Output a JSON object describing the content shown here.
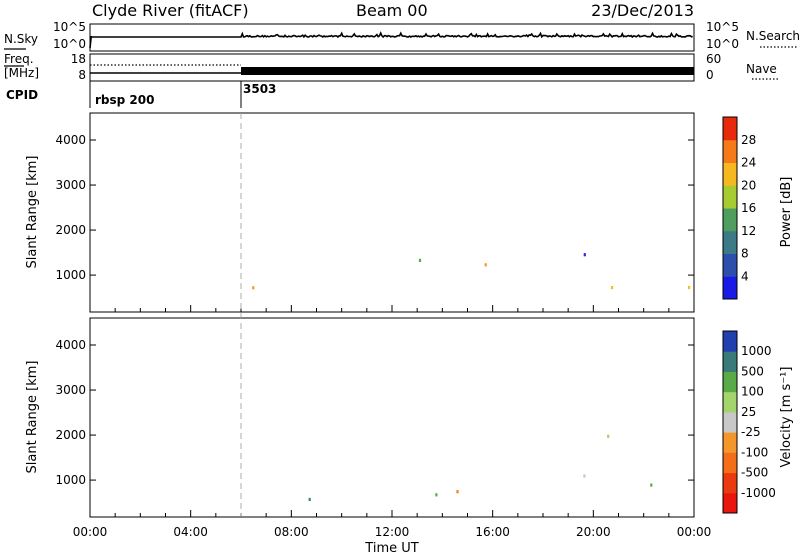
{
  "header": {
    "station": "Clyde River (fitACF)",
    "beam": "Beam 00",
    "date": "23/Dec/2013"
  },
  "colors": {
    "power_scale": [
      "#2a2adc",
      "#2b5fa8",
      "#3f8a7a",
      "#58a85a",
      "#9cc834",
      "#f2c21a",
      "#f59a20",
      "#f46a14",
      "#ec3c10",
      "#e01a0a"
    ],
    "velocity_scale": [
      "#e8160c",
      "#f04a12",
      "#f5801a",
      "#f5a83a",
      "#c8c8c8",
      "#9cd46c",
      "#58b040",
      "#3a8a6a",
      "#2a5aa0",
      "#1e34b8"
    ]
  },
  "chart_data": [
    {
      "type": "line",
      "name": "nsky-nsearch",
      "left_label": "N.Sky",
      "right_label": "N.Search",
      "left_ticks": [
        "10^5",
        "10^0"
      ],
      "right_ticks": [
        "10^5",
        "10^0"
      ]
    },
    {
      "type": "line",
      "name": "freq-nave",
      "left_label_lines": [
        "Freq.",
        "[MHz]"
      ],
      "right_label": "Nave",
      "left_ticks": [
        "18",
        "8"
      ],
      "right_ticks": [
        "60",
        "0"
      ]
    },
    {
      "type": "table",
      "name": "cpid",
      "label": "CPID",
      "entries": [
        {
          "t": 0.0,
          "text": "rbsp 200"
        },
        {
          "t": 6.0,
          "text": "3503"
        }
      ]
    },
    {
      "type": "heatmap",
      "name": "power",
      "ylabel": "Slant Range [km]",
      "yticks": [
        "1000",
        "2000",
        "3000",
        "4000"
      ],
      "ytick_values": [
        1000,
        2000,
        3000,
        4000
      ],
      "ylim": [
        180,
        4600
      ],
      "xlim": [
        0,
        24
      ],
      "colorbar_label": "Power [dB]",
      "colorbar_ticks": [
        "4",
        "8",
        "12",
        "16",
        "20",
        "24",
        "28"
      ],
      "colorbar_range": [
        0,
        32
      ]
    },
    {
      "type": "heatmap",
      "name": "velocity",
      "ylabel": "Slant Range [km]",
      "yticks": [
        "1000",
        "2000",
        "3000",
        "4000"
      ],
      "ytick_values": [
        1000,
        2000,
        3000,
        4000
      ],
      "ylim": [
        180,
        4600
      ],
      "xlim": [
        0,
        24
      ],
      "xlabel": "Time UT",
      "xticks": [
        "00:00",
        "04:00",
        "08:00",
        "12:00",
        "16:00",
        "20:00",
        "00:00"
      ],
      "xtick_values": [
        0,
        4,
        8,
        12,
        16,
        20,
        24
      ],
      "colorbar_label": "Velocity [m s⁻¹]",
      "colorbar_ticks": [
        "1000",
        "500",
        "100",
        "25",
        "-25",
        "-100",
        "-500",
        "-1000"
      ]
    }
  ]
}
